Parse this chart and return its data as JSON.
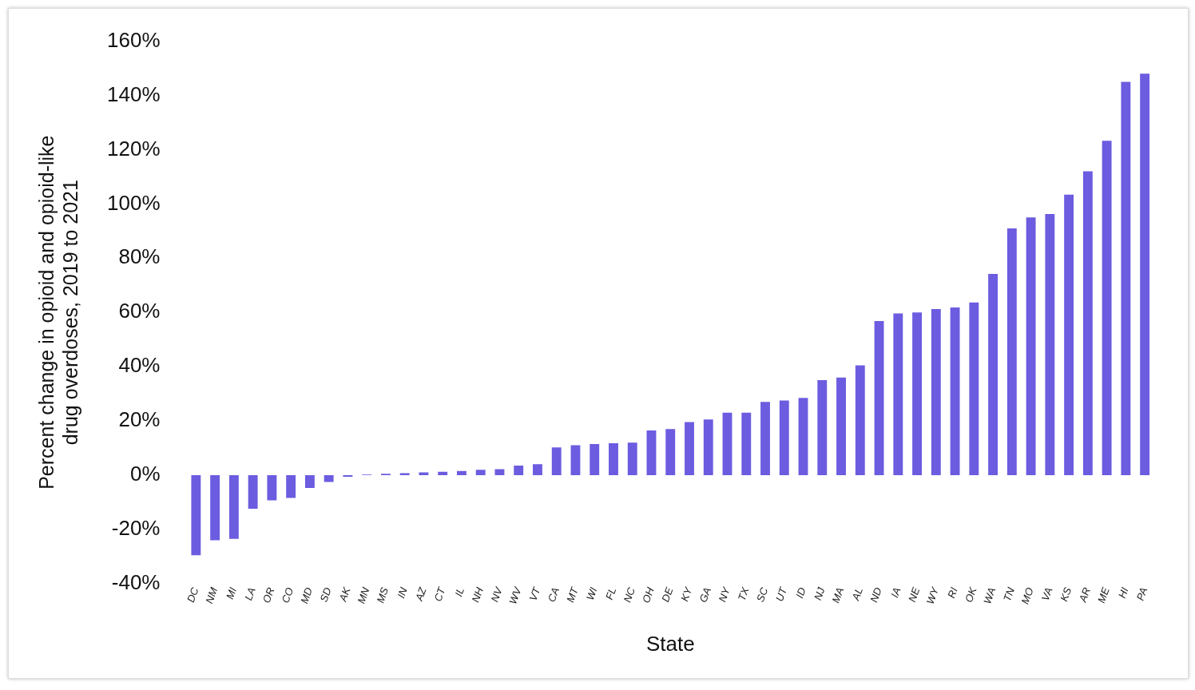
{
  "chart_data": {
    "type": "bar",
    "xlabel": "State",
    "ylabel": "Percent change in opioid and opioid-like drug overdoses, 2019 to 2021",
    "categories": [
      "DC",
      "NM",
      "MI",
      "LA",
      "OR",
      "CO",
      "MD",
      "SD",
      "AK",
      "MN",
      "MS",
      "IN",
      "AZ",
      "CT",
      "IL",
      "NH",
      "NV",
      "WV",
      "VT",
      "CA",
      "MT",
      "WI",
      "FL",
      "NC",
      "OH",
      "DE",
      "KY",
      "GA",
      "NY",
      "TX",
      "SC",
      "UT",
      "ID",
      "NJ",
      "MA",
      "AL",
      "ND",
      "IA",
      "NE",
      "WY",
      "RI",
      "OK",
      "WA",
      "TN",
      "MO",
      "VA",
      "KS",
      "AR",
      "ME",
      "HI",
      "PA"
    ],
    "values": [
      -29.5,
      -24,
      -23.5,
      -12.4,
      -9.3,
      -8.4,
      -4.7,
      -2.5,
      -0.6,
      0.2,
      0.5,
      0.7,
      1,
      1.2,
      1.5,
      2,
      2.2,
      3.5,
      4,
      10.2,
      11,
      11.5,
      11.8,
      12,
      16.5,
      17,
      19.6,
      20.5,
      23,
      23,
      27,
      27.5,
      28.5,
      35,
      36,
      40.5,
      56.8,
      59.6,
      60,
      61.2,
      61.8,
      63.7,
      74.2,
      91,
      95,
      96.3,
      103.4,
      112,
      123.3,
      145,
      148
    ],
    "color": "#6b5ce0",
    "ylim": [
      -40,
      160
    ],
    "yticks": [
      {
        "value": -40,
        "label": "-40%"
      },
      {
        "value": -20,
        "label": "-20%"
      },
      {
        "value": 0,
        "label": "0%"
      },
      {
        "value": 20,
        "label": "20%"
      },
      {
        "value": 40,
        "label": "40%"
      },
      {
        "value": 60,
        "label": "60%"
      },
      {
        "value": 80,
        "label": "80%"
      },
      {
        "value": 100,
        "label": "100%"
      },
      {
        "value": 120,
        "label": "120%"
      },
      {
        "value": 140,
        "label": "140%"
      },
      {
        "value": 160,
        "label": "160%"
      }
    ],
    "grid": false,
    "legend": false
  }
}
